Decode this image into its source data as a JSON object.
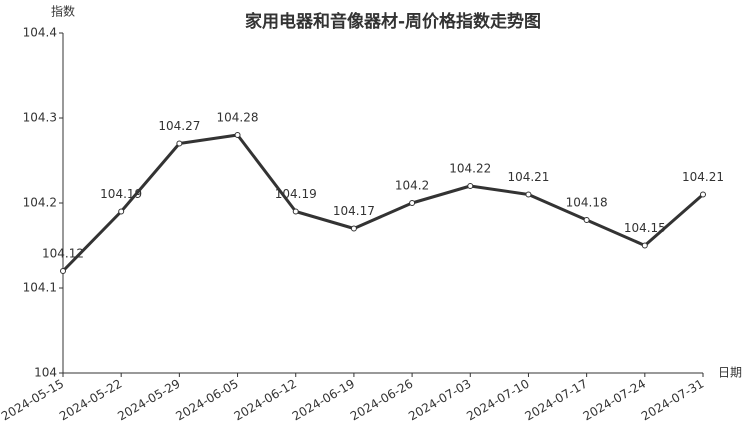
{
  "chart_data": {
    "type": "line",
    "title": "家用电器和音像器材-周价格指数走势图",
    "y_label": "指数",
    "x_label": "日期",
    "x": [
      "2024-05-15",
      "2024-05-22",
      "2024-05-29",
      "2024-06-05",
      "2024-06-12",
      "2024-06-19",
      "2024-06-26",
      "2024-07-03",
      "2024-07-10",
      "2024-07-17",
      "2024-07-24",
      "2024-07-31"
    ],
    "series": [
      {
        "color": "#333333",
        "values": [
          104.12,
          104.19,
          104.27,
          104.28,
          104.19,
          104.17,
          104.2,
          104.22,
          104.21,
          104.18,
          104.15,
          104.21
        ]
      }
    ],
    "ylim": [
      104,
      104.4
    ],
    "yticks": [
      104,
      104.1,
      104.2,
      104.3,
      104.4
    ],
    "grid": false
  }
}
